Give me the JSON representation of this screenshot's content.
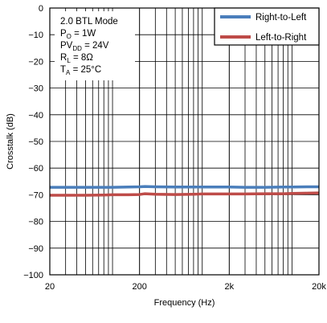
{
  "chart_data": {
    "type": "line",
    "title": "",
    "xlabel": "Frequency (Hz)",
    "ylabel": "Crosstalk (dB)",
    "xscale": "log",
    "xlim": [
      20,
      20000
    ],
    "ylim": [
      -100,
      0
    ],
    "grid": true,
    "x_ticks": [
      {
        "value": 20,
        "label": "20"
      },
      {
        "value": 200,
        "label": "200"
      },
      {
        "value": 2000,
        "label": "2k"
      },
      {
        "value": 20000,
        "label": "20k"
      }
    ],
    "y_ticks": [
      {
        "value": 0,
        "label": "0"
      },
      {
        "value": -10,
        "label": "−10"
      },
      {
        "value": -20,
        "label": "−20"
      },
      {
        "value": -30,
        "label": "−30"
      },
      {
        "value": -40,
        "label": "−40"
      },
      {
        "value": -50,
        "label": "−50"
      },
      {
        "value": -60,
        "label": "−60"
      },
      {
        "value": -70,
        "label": "−70"
      },
      {
        "value": -80,
        "label": "−80"
      },
      {
        "value": -90,
        "label": "−90"
      },
      {
        "value": -100,
        "label": "−100"
      }
    ],
    "legend_position": "top-right",
    "series": [
      {
        "name": "Right-to-Left",
        "color": "#4a7ebb",
        "x": [
          20,
          30,
          50,
          80,
          100,
          150,
          200,
          230,
          300,
          500,
          800,
          1000,
          1500,
          2000,
          3000,
          5000,
          8000,
          10000,
          15000,
          20000
        ],
        "y": [
          -67.2,
          -67.2,
          -67.2,
          -67.2,
          -67.2,
          -67.1,
          -67.0,
          -66.9,
          -67.0,
          -67.1,
          -67.1,
          -67.1,
          -67.1,
          -67.1,
          -67.2,
          -67.2,
          -67.1,
          -67.1,
          -67.0,
          -67.0
        ]
      },
      {
        "name": "Left-to-Right",
        "color": "#be4b48",
        "x": [
          20,
          30,
          50,
          80,
          100,
          150,
          200,
          230,
          300,
          500,
          800,
          1000,
          1500,
          2000,
          3000,
          5000,
          8000,
          10000,
          15000,
          20000
        ],
        "y": [
          -70.2,
          -70.2,
          -70.2,
          -70.1,
          -70.0,
          -70.0,
          -69.9,
          -69.6,
          -69.8,
          -69.9,
          -69.8,
          -69.7,
          -69.7,
          -69.7,
          -69.7,
          -69.6,
          -69.6,
          -69.5,
          -69.4,
          -69.3
        ]
      }
    ],
    "annotations": [
      {
        "parts": [
          {
            "t": "2.0 BTL Mode"
          }
        ]
      },
      {
        "parts": [
          {
            "t": "P"
          },
          {
            "t": "O",
            "sub": true
          },
          {
            "t": " = 1W"
          }
        ]
      },
      {
        "parts": [
          {
            "t": "PV"
          },
          {
            "t": "DD",
            "sub": true
          },
          {
            "t": " = 24V"
          }
        ]
      },
      {
        "parts": [
          {
            "t": "R"
          },
          {
            "t": "L",
            "sub": true
          },
          {
            "t": " = 8Ω"
          }
        ]
      },
      {
        "parts": [
          {
            "t": "T"
          },
          {
            "t": "A",
            "sub": true
          },
          {
            "t": " = 25°C"
          }
        ]
      }
    ]
  }
}
